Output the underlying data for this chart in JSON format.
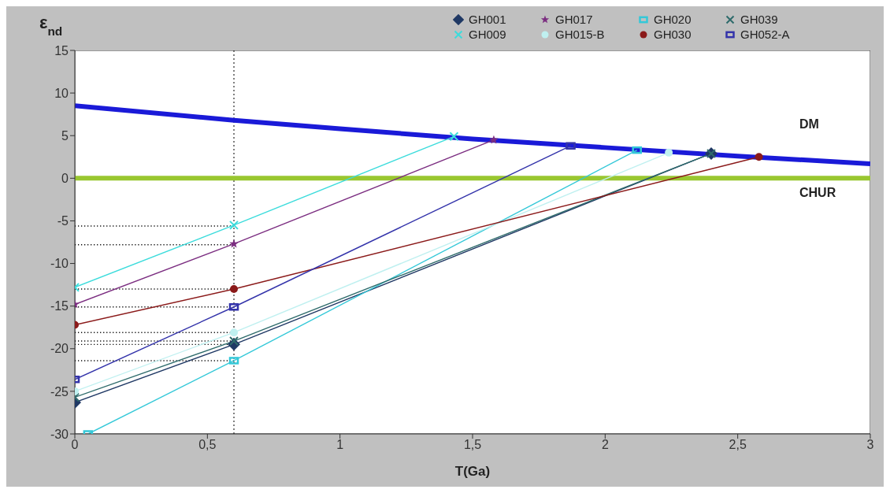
{
  "chart_data": {
    "type": "line",
    "xlabel": "T(Ga)",
    "ylabel": "ε$_{nd}$",
    "xlim": [
      0,
      3
    ],
    "xticks": [
      0,
      {
        "value": 0.5,
        "label": "0,5"
      },
      1,
      {
        "value": 1.5,
        "label": "1,5"
      },
      2,
      {
        "value": 2.5,
        "label": "2,5"
      },
      3
    ],
    "ylim": [
      -30,
      15
    ],
    "yticks": [
      -30,
      -25,
      -20,
      -15,
      -10,
      -5,
      0,
      5,
      10,
      15
    ],
    "legend": "top right",
    "ref_lines": [
      {
        "axis": "x",
        "value": 0.6,
        "color": "#000000",
        "line_style": "dotted"
      }
    ],
    "series": [
      {
        "name": "DM",
        "color": "#1a1ad8",
        "marker": "none",
        "x": [
          0,
          0.6,
          1,
          1.5,
          2,
          2.5,
          3
        ],
        "values": [
          8.5,
          6.8,
          5.8,
          4.6,
          3.6,
          2.6,
          1.7
        ]
      },
      {
        "name": "CHUR",
        "color": "#99c730",
        "marker": "none",
        "x": [
          0,
          3
        ],
        "values": [
          0,
          0
        ]
      },
      {
        "color": "#000000",
        "marker": "none",
        "line_style": "dotted",
        "x": [
          0,
          0.6
        ],
        "values": [
          -5.6,
          -5.6
        ]
      },
      {
        "color": "#000000",
        "marker": "none",
        "line_style": "dotted",
        "x": [
          0,
          0.6
        ],
        "values": [
          -7.8,
          -7.8
        ]
      },
      {
        "color": "#000000",
        "marker": "none",
        "line_style": "dotted",
        "x": [
          0,
          0.6
        ],
        "values": [
          -13,
          -13
        ]
      },
      {
        "color": "#000000",
        "marker": "none",
        "line_style": "dotted",
        "x": [
          0,
          0.6
        ],
        "values": [
          -15.1,
          -15.1
        ]
      },
      {
        "color": "#000000",
        "marker": "none",
        "line_style": "dotted",
        "x": [
          0,
          0.6
        ],
        "values": [
          -18.1,
          -18.1
        ]
      },
      {
        "color": "#000000",
        "marker": "none",
        "line_style": "dotted",
        "x": [
          0,
          0.6
        ],
        "values": [
          -19.1,
          -19.1
        ]
      },
      {
        "color": "#000000",
        "marker": "none",
        "line_style": "dotted",
        "x": [
          0,
          0.6
        ],
        "values": [
          -19.5,
          -19.5
        ]
      },
      {
        "color": "#000000",
        "marker": "none",
        "line_style": "dotted",
        "x": [
          0,
          0.6
        ],
        "values": [
          -21.4,
          -21.4
        ]
      },
      {
        "name": "GH001",
        "color": "#1f3864",
        "marker": "diamond",
        "x": [
          0,
          0.6,
          2.4
        ],
        "values": [
          -26.3,
          -19.5,
          2.9
        ]
      },
      {
        "name": "GH017",
        "color": "#7b2d80",
        "marker": "star",
        "x": [
          0,
          0.6,
          1.58
        ],
        "values": [
          -14.8,
          -7.7,
          4.5
        ]
      },
      {
        "name": "GH020",
        "color": "#33c8d8",
        "marker": "square",
        "x": [
          0.05,
          0.6,
          2.12
        ],
        "values": [
          -30,
          -21.4,
          3.3
        ]
      },
      {
        "name": "GH039",
        "color": "#2e6b6b",
        "marker": "cross",
        "x": [
          0,
          0.6,
          2.4
        ],
        "values": [
          -25.7,
          -19.1,
          2.9
        ]
      },
      {
        "name": "GH009",
        "color": "#3cdcdc",
        "marker": "cross",
        "x": [
          0,
          0.6,
          1.43
        ],
        "values": [
          -12.8,
          -5.5,
          4.9
        ]
      },
      {
        "name": "GH015-B",
        "color": "#bff0f0",
        "marker": "circle",
        "x": [
          0,
          0.6,
          2.24
        ],
        "values": [
          -25,
          -18.1,
          3.0
        ]
      },
      {
        "name": "GH030",
        "color": "#8b1a1a",
        "marker": "circle",
        "x": [
          0,
          0.6,
          2.58
        ],
        "values": [
          -17.2,
          -13,
          2.5
        ]
      },
      {
        "name": "GH052-A",
        "color": "#3333aa",
        "marker": "square",
        "x": [
          0,
          0.6,
          1.87
        ],
        "values": [
          -23.6,
          -15.1,
          3.8
        ]
      }
    ]
  }
}
